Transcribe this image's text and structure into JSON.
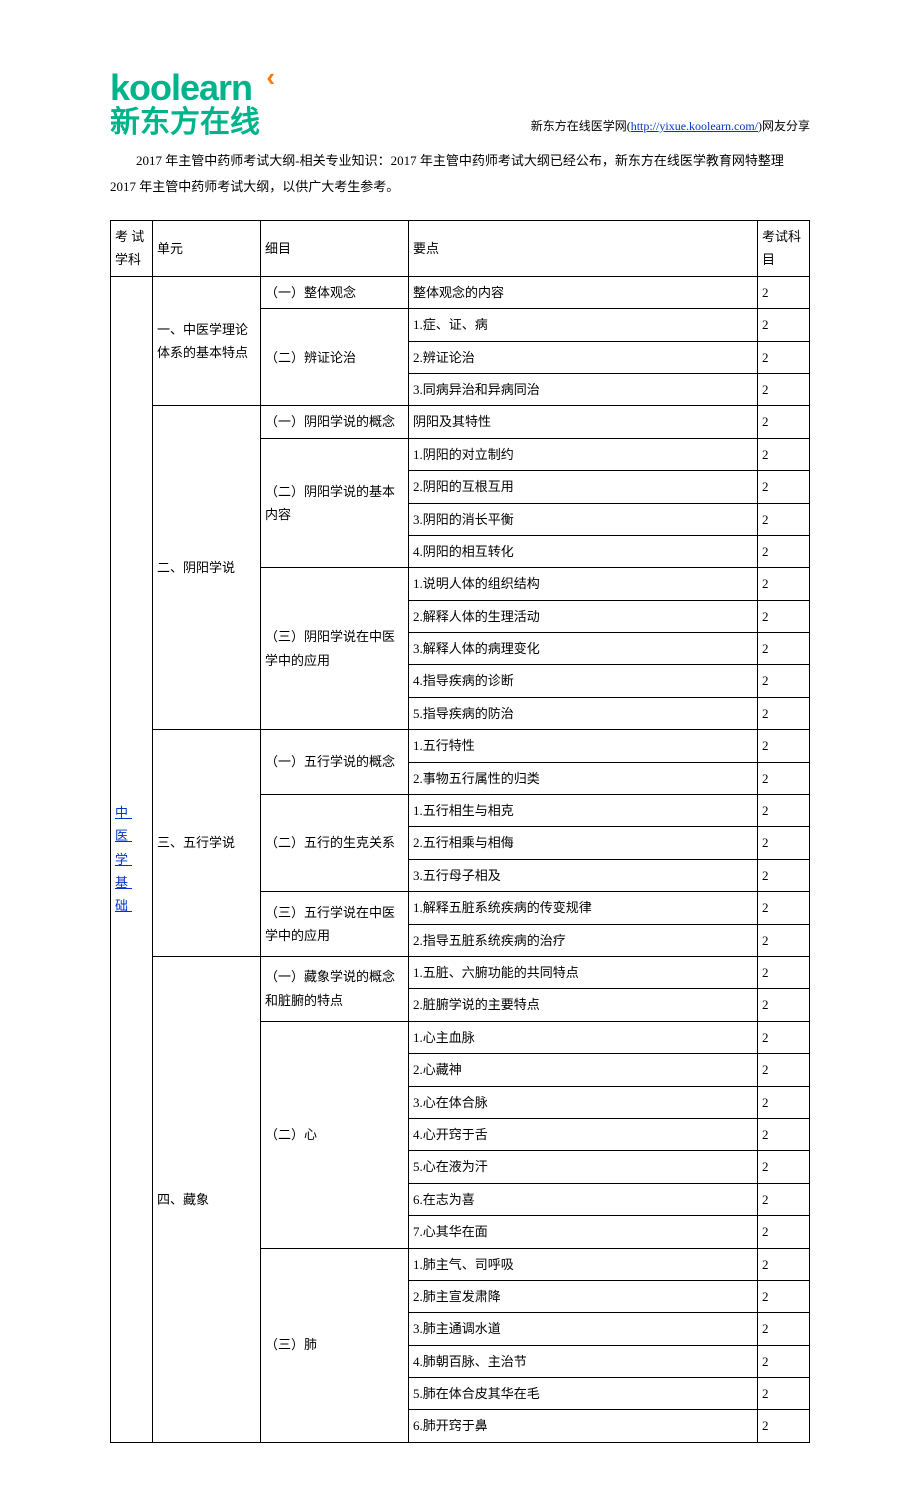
{
  "header": {
    "logo_en": "koolearn",
    "logo_cn": "新东方在线",
    "right_prefix": "新东方在线医学网(",
    "right_url_text": "http://yixue.koolearn.com/",
    "right_suffix": ")网友分享"
  },
  "intro": "2017 年主管中药师考试大纲-相关专业知识：2017 年主管中药师考试大纲已经公布，新东方在线医学教育网特整理 2017 年主管中药师考试大纲，以供广大考生参考。",
  "table": {
    "headers": {
      "subject": "考 试学科",
      "unit": "单元",
      "detail": "细目",
      "point": "要点",
      "exam": "考试科目"
    },
    "subject_label": "中 医学 基础",
    "units": [
      {
        "name": "一、中医学理论体系的基本特点",
        "details": [
          {
            "name": "（一）整体观念",
            "points": [
              {
                "t": "整体观念的内容",
                "e": "2"
              }
            ]
          },
          {
            "name": "（二）辨证论治",
            "points": [
              {
                "t": "1.症、证、病",
                "e": "2"
              },
              {
                "t": "2.辨证论治",
                "e": "2"
              },
              {
                "t": "3.同病异治和异病同治",
                "e": "2"
              }
            ]
          }
        ]
      },
      {
        "name": "二、阴阳学说",
        "details": [
          {
            "name": "（一）阴阳学说的概念",
            "points": [
              {
                "t": "阴阳及其特性",
                "e": "2"
              }
            ]
          },
          {
            "name": "（二）阴阳学说的基本内容",
            "points": [
              {
                "t": "1.阴阳的对立制约",
                "e": "2"
              },
              {
                "t": "2.阴阳的互根互用",
                "e": "2"
              },
              {
                "t": "3.阴阳的消长平衡",
                "e": "2"
              },
              {
                "t": "4.阴阳的相互转化",
                "e": "2"
              }
            ]
          },
          {
            "name": "（三）阴阳学说在中医学中的应用",
            "points": [
              {
                "t": "1.说明人体的组织结构",
                "e": "2"
              },
              {
                "t": "2.解释人体的生理活动",
                "e": "2"
              },
              {
                "t": "3.解释人体的病理变化",
                "e": "2"
              },
              {
                "t": "4.指导疾病的诊断",
                "e": "2"
              },
              {
                "t": "5.指导疾病的防治",
                "e": "2"
              }
            ]
          }
        ]
      },
      {
        "name": "三、五行学说",
        "details": [
          {
            "name": "（一）五行学说的概念",
            "points": [
              {
                "t": "1.五行特性",
                "e": "2"
              },
              {
                "t": "2.事物五行属性的归类",
                "e": "2"
              }
            ]
          },
          {
            "name": "（二）五行的生克关系",
            "points": [
              {
                "t": "1.五行相生与相克",
                "e": "2"
              },
              {
                "t": "2.五行相乘与相侮",
                "e": "2"
              },
              {
                "t": "3.五行母子相及",
                "e": "2"
              }
            ]
          },
          {
            "name": "（三）五行学说在中医学中的应用",
            "points": [
              {
                "t": "1.解释五脏系统疾病的传变规律",
                "e": "2"
              },
              {
                "t": "2.指导五脏系统疾病的治疗",
                "e": "2"
              }
            ]
          }
        ]
      },
      {
        "name": "四、藏象",
        "details": [
          {
            "name": "（一）藏象学说的概念和脏腑的特点",
            "points": [
              {
                "t": "1.五脏、六腑功能的共同特点",
                "e": "2"
              },
              {
                "t": "2.脏腑学说的主要特点",
                "e": "2"
              }
            ]
          },
          {
            "name": "（二）心",
            "points": [
              {
                "t": "1.心主血脉",
                "e": "2"
              },
              {
                "t": "2.心藏神",
                "e": "2"
              },
              {
                "t": "3.心在体合脉",
                "e": "2"
              },
              {
                "t": "4.心开窍于舌",
                "e": "2"
              },
              {
                "t": "5.心在液为汗",
                "e": "2"
              },
              {
                "t": "6.在志为喜",
                "e": "2"
              },
              {
                "t": "7.心其华在面",
                "e": "2"
              }
            ]
          },
          {
            "name": "（三）肺",
            "points": [
              {
                "t": "1.肺主气、司呼吸",
                "e": "2"
              },
              {
                "t": "2.肺主宣发肃降",
                "e": "2"
              },
              {
                "t": "3.肺主通调水道",
                "e": "2"
              },
              {
                "t": "4.肺朝百脉、主治节",
                "e": "2"
              },
              {
                "t": "5.肺在体合皮其华在毛",
                "e": "2"
              },
              {
                "t": "6.肺开窍于鼻",
                "e": "2"
              }
            ]
          }
        ]
      }
    ]
  }
}
